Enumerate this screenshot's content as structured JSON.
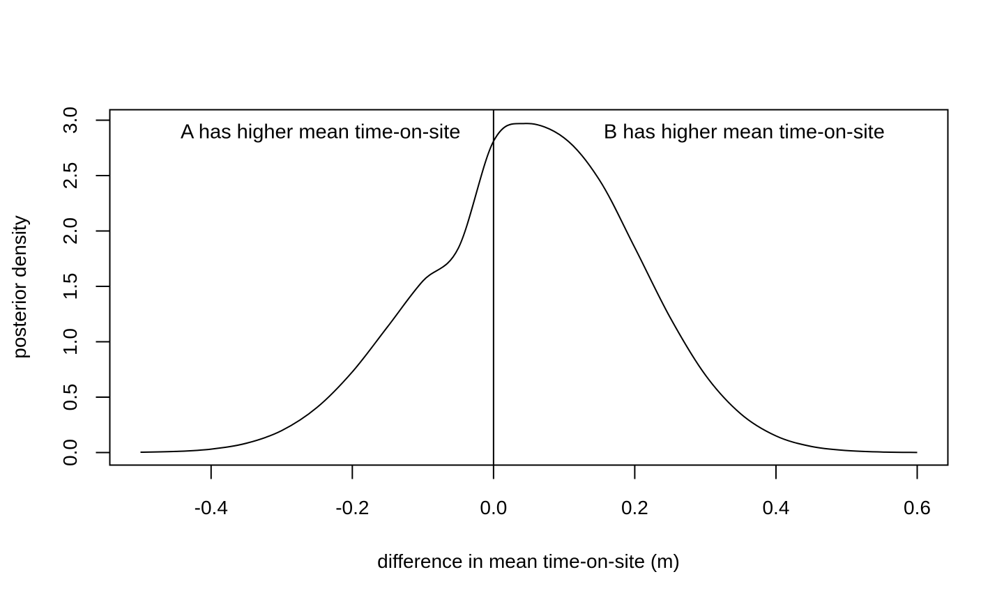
{
  "chart_data": {
    "type": "line",
    "title": "",
    "xlabel": "difference in mean time-on-site (m)",
    "ylabel": "posterior density",
    "xlim": [
      -0.5,
      0.6
    ],
    "ylim": [
      0,
      3.0
    ],
    "x_ticks": [
      -0.4,
      -0.2,
      0.0,
      0.2,
      0.4,
      0.6
    ],
    "x_tick_labels": [
      "-0.4",
      "-0.2",
      "0.0",
      "0.2",
      "0.4",
      "0.6"
    ],
    "y_ticks": [
      0.0,
      0.5,
      1.0,
      1.5,
      2.0,
      2.5,
      3.0
    ],
    "y_tick_labels": [
      "0.0",
      "0.5",
      "1.0",
      "1.5",
      "2.0",
      "2.5",
      "3.0"
    ],
    "grid": false,
    "legend": "none",
    "vertical_line": {
      "x": 0.0
    },
    "annotations": [
      {
        "text": "A has higher mean time-on-site",
        "x": -0.245,
        "y": 2.9
      },
      {
        "text": "B has higher mean time-on-site",
        "x": 0.355,
        "y": 2.9
      }
    ],
    "series": [
      {
        "x": [
          -0.5,
          -0.45,
          -0.4,
          -0.35,
          -0.3,
          -0.25,
          -0.2,
          -0.15,
          -0.1,
          -0.05,
          0.0,
          0.045,
          0.1,
          0.15,
          0.2,
          0.25,
          0.3,
          0.35,
          0.4,
          0.45,
          0.5,
          0.55,
          0.6
        ],
        "values": [
          0.003,
          0.01,
          0.031,
          0.084,
          0.198,
          0.407,
          0.728,
          1.136,
          1.549,
          1.843,
          2.81,
          2.97,
          2.84,
          2.46,
          1.85,
          1.22,
          0.7,
          0.35,
          0.15,
          0.055,
          0.018,
          0.005,
          0.001
        ]
      }
    ]
  }
}
